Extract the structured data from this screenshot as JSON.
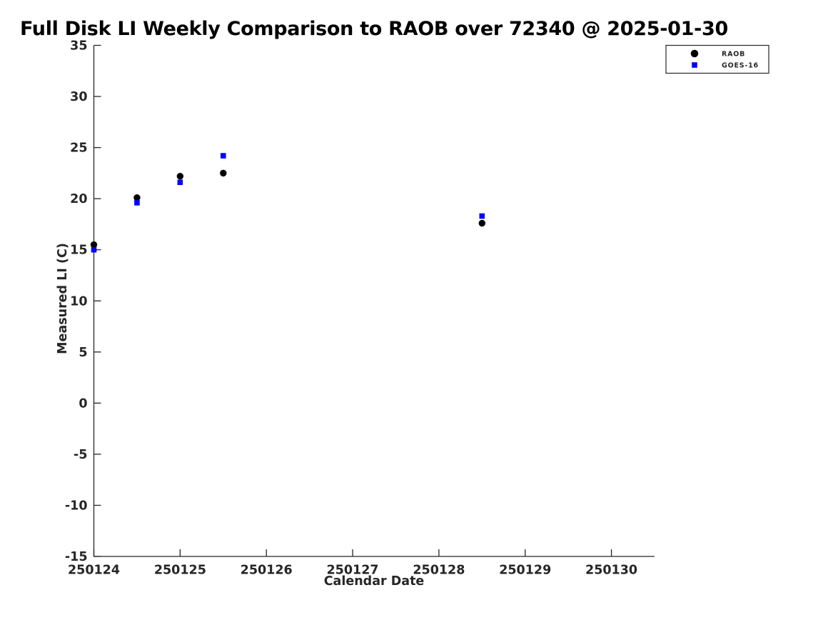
{
  "chart_data": {
    "type": "scatter",
    "title": "Full Disk LI Weekly Comparison to RAOB over 72340 @ 2025-01-30",
    "xlabel": "Calendar Date",
    "ylabel": "Measured LI (C)",
    "xlim": [
      250124,
      250130.5
    ],
    "ylim": [
      -15,
      35
    ],
    "x_ticks": [
      250124,
      250125,
      250126,
      250127,
      250128,
      250129,
      250130
    ],
    "y_ticks": [
      -15,
      -10,
      -5,
      0,
      5,
      10,
      15,
      20,
      25,
      30,
      35
    ],
    "grid": false,
    "box": false,
    "tick_direction": "in",
    "legend": {
      "position": "top-right-outside",
      "entries": [
        "RAOB",
        "GOES-16"
      ]
    },
    "series": [
      {
        "name": "RAOB",
        "marker": "circle",
        "color": "#000000",
        "x": [
          250124,
          250124.5,
          250125,
          250125.5,
          250128.5
        ],
        "y": [
          15.5,
          20.1,
          22.2,
          22.5,
          17.6
        ]
      },
      {
        "name": "GOES-16",
        "marker": "square",
        "color": "#0000ff",
        "x": [
          250124,
          250124.5,
          250125,
          250125.5,
          250128.5
        ],
        "y": [
          15.0,
          19.6,
          21.6,
          24.2,
          18.3
        ]
      }
    ],
    "colors": {
      "axis": "#262626",
      "title": "#000000",
      "background": "#ffffff",
      "raob": "#000000",
      "goes16": "#0000ff"
    }
  }
}
